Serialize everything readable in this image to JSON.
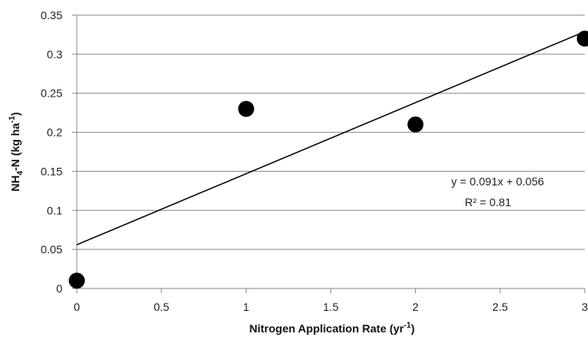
{
  "chart_data": {
    "type": "scatter",
    "xlabel": {
      "main": "Nitrogen Application Rate (yr",
      "sup": "-1",
      "end": ")"
    },
    "ylabel": {
      "a": "NH",
      "sub": "4",
      "b": "-N (kg ha",
      "sup": "-1",
      "c": ")"
    },
    "xlim": [
      0,
      3
    ],
    "ylim": [
      0,
      0.35
    ],
    "x_ticks": [
      "0",
      "0.5",
      "1",
      "1.5",
      "2",
      "2.5",
      "3"
    ],
    "y_ticks": [
      "0",
      "0.05",
      "0.1",
      "0.15",
      "0.2",
      "0.25",
      "0.3",
      "0.35"
    ],
    "grid": "horizontal",
    "points": [
      {
        "x": 0,
        "y": 0.01
      },
      {
        "x": 1,
        "y": 0.23
      },
      {
        "x": 2,
        "y": 0.21
      },
      {
        "x": 3,
        "y": 0.32
      }
    ],
    "trendline": {
      "slope": 0.091,
      "intercept": 0.056
    },
    "annotations": {
      "equation": "y = 0.091x + 0.056",
      "r2": "R² = 0.81"
    },
    "colors": {
      "point": "#000000",
      "trendline": "#000000",
      "grid": "#888888",
      "axis": "#888888"
    }
  }
}
